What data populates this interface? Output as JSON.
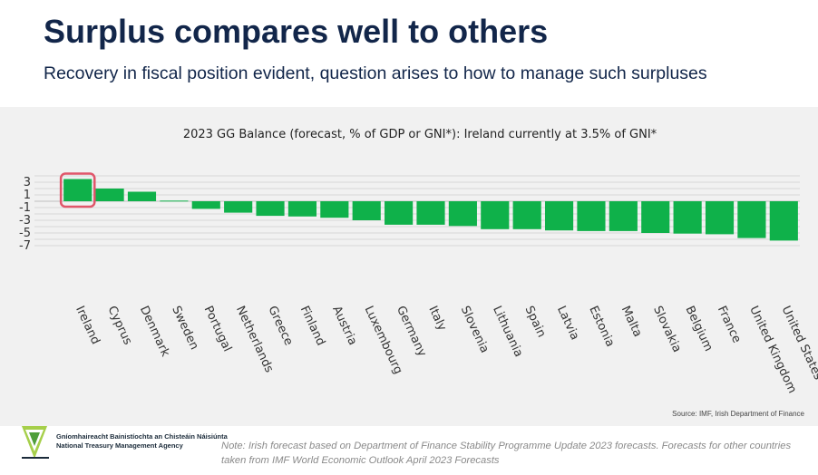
{
  "slide": {
    "title": "Surplus compares well to others",
    "subtitle": "Recovery in fiscal position evident, question arises to how to manage such surpluses",
    "source": "Source: IMF, Irish Department of Finance",
    "agency_line1": "Gníomhaireacht Bainistíochta an Chisteáin Náisiúnta",
    "agency_line2": "National Treasury Management Agency",
    "note": "Note: Irish forecast based on Department of Finance Stability Programme Update 2023 forecasts. Forecasts for other countries taken from IMF World Economic Outlook April 2023 Forecasts",
    "logo_icon": "ntma-triangle-logo-icon"
  },
  "chart_data": {
    "type": "bar",
    "title": "2023 GG Balance (forecast, % of GDP or GNI*): Ireland currently at 3.5% of GNI*",
    "xlabel": "",
    "ylabel": "",
    "categories": [
      "Ireland",
      "Cyprus",
      "Denmark",
      "Sweden",
      "Portugal",
      "Netherlands",
      "Greece",
      "Finland",
      "Austria",
      "Luxembourg",
      "Germany",
      "Italy",
      "Slovenia",
      "Lithuania",
      "Spain",
      "Latvia",
      "Estonia",
      "Malta",
      "Slovakia",
      "Belgium",
      "France",
      "United Kingdom",
      "United States"
    ],
    "values": [
      3.5,
      2.0,
      1.5,
      0.1,
      -1.2,
      -1.8,
      -2.3,
      -2.4,
      -2.6,
      -3.0,
      -3.7,
      -3.7,
      -3.9,
      -4.4,
      -4.4,
      -4.6,
      -4.7,
      -4.7,
      -5.0,
      -5.1,
      -5.2,
      -5.8,
      -6.2
    ],
    "yticks": [
      3,
      1,
      -1,
      -3,
      -5,
      -7
    ],
    "ylim": [
      -7,
      4
    ],
    "grid": true,
    "bar_color": "#0fb14a",
    "highlight": {
      "category": "Ireland",
      "color": "#e0566a"
    }
  }
}
